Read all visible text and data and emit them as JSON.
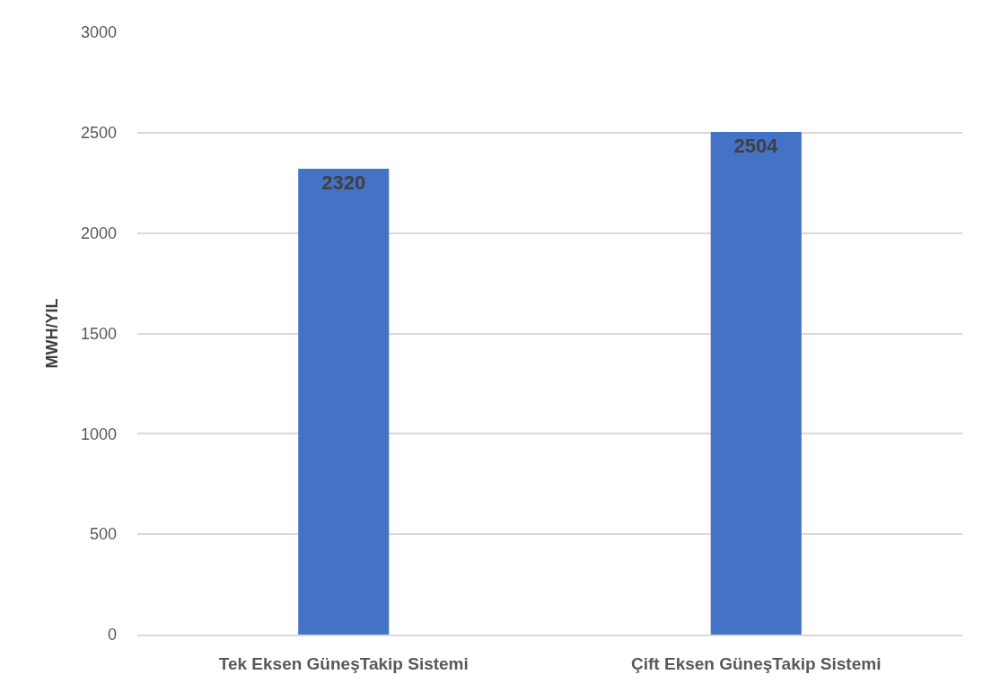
{
  "chart_data": {
    "type": "bar",
    "categories": [
      "Tek Eksen GüneşTakip Sistemi",
      "Çift Eksen GüneşTakip Sistemi"
    ],
    "values": [
      2320,
      2504
    ],
    "color": "#4472c4",
    "ylabel": "MWH/YIL",
    "ylim": [
      0,
      3000
    ],
    "yticks": [
      0,
      500,
      1000,
      1500,
      2000,
      2500,
      3000
    ],
    "grid": "y",
    "data_labels": true
  }
}
